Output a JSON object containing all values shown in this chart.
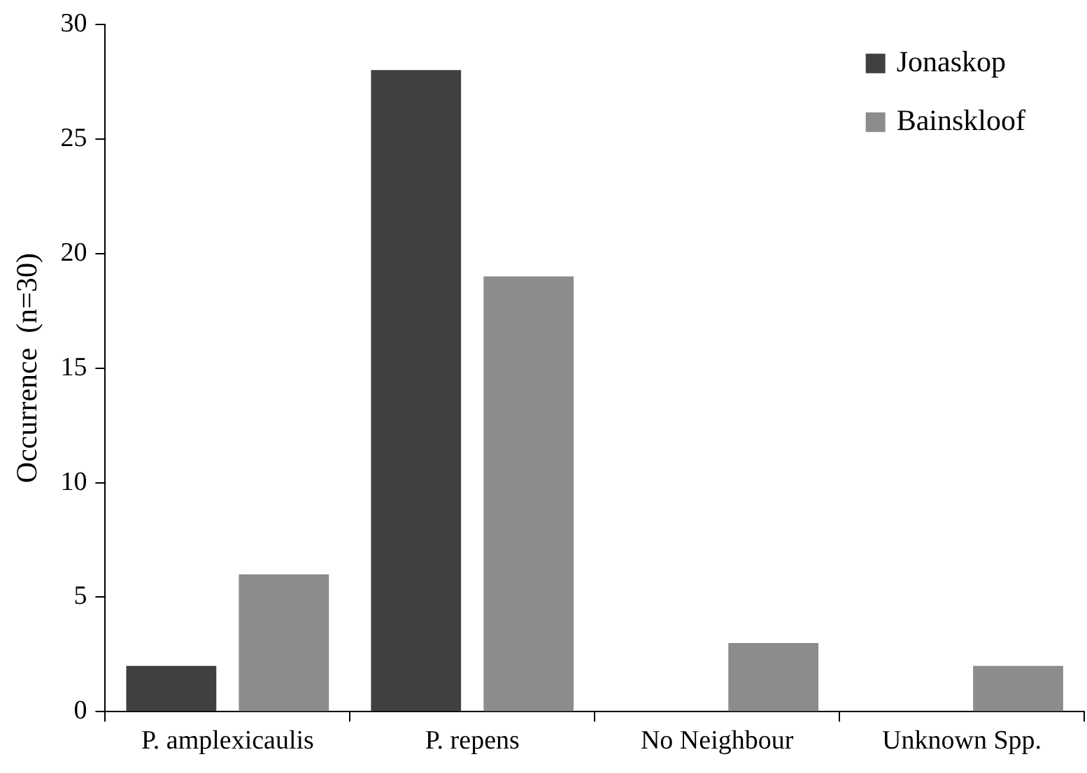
{
  "chart_data": {
    "type": "bar",
    "ylabel": "Occurrence  (n=30)",
    "categories": [
      "P. amplexicaulis",
      "P. repens",
      "No Neighbour",
      "Unknown Spp."
    ],
    "series": [
      {
        "name": "Jonaskop",
        "color": "#404040",
        "values": [
          2,
          28,
          0,
          0
        ]
      },
      {
        "name": "Bainskloof",
        "color": "#8c8c8c",
        "values": [
          6,
          19,
          3,
          2
        ]
      }
    ],
    "ylim": [
      0,
      30
    ],
    "yticks": [
      0,
      5,
      10,
      15,
      20,
      25,
      30
    ],
    "grid": false,
    "legend": "top right"
  }
}
